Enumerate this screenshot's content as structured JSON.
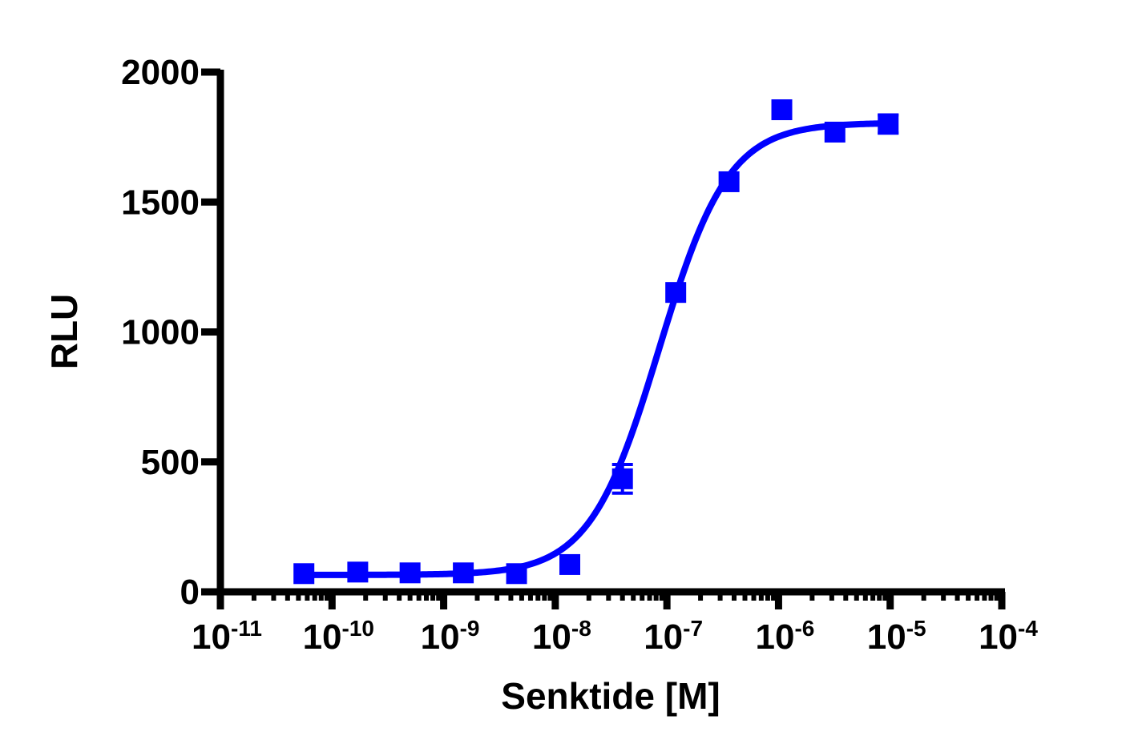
{
  "chart_data": {
    "type": "scatter",
    "title": "",
    "xlabel": "Senktide [M]",
    "ylabel": "RLU",
    "xscale": "log",
    "xlim": [
      1e-11,
      0.0001
    ],
    "ylim": [
      0,
      2000
    ],
    "x_tick_labels": [
      {
        "base": "10",
        "exp": "-11"
      },
      {
        "base": "10",
        "exp": "-10"
      },
      {
        "base": "10",
        "exp": "-9"
      },
      {
        "base": "10",
        "exp": "-8"
      },
      {
        "base": "10",
        "exp": "-7"
      },
      {
        "base": "10",
        "exp": "-6"
      },
      {
        "base": "10",
        "exp": "-5"
      },
      {
        "base": "10",
        "exp": "-4"
      }
    ],
    "y_ticks": [
      0,
      500,
      1000,
      1500,
      2000
    ],
    "y_tick_labels": [
      "0",
      "500",
      "1000",
      "1500",
      "2000"
    ],
    "grid": false,
    "legend": null,
    "color": "#0000ff",
    "series": [
      {
        "name": "Senktide",
        "marker": "square",
        "x": [
          5.6e-11,
          1.7e-10,
          5e-10,
          1.5e-09,
          4.5e-09,
          1.35e-08,
          4e-08,
          1.2e-07,
          3.6e-07,
          1.07e-06,
          3.2e-06,
          9.6e-06
        ],
        "y": [
          70,
          76,
          73,
          73,
          70,
          105,
          435,
          1152,
          1578,
          1855,
          1769,
          1800
        ],
        "error": [
          0,
          0,
          0,
          0,
          0,
          0,
          55,
          0,
          0,
          0,
          0,
          35
        ]
      }
    ],
    "fit": {
      "type": "sigmoidal dose-response",
      "bottom": 65,
      "top": 1805,
      "logEC50": -7.07,
      "hill_slope": 1.4
    }
  }
}
